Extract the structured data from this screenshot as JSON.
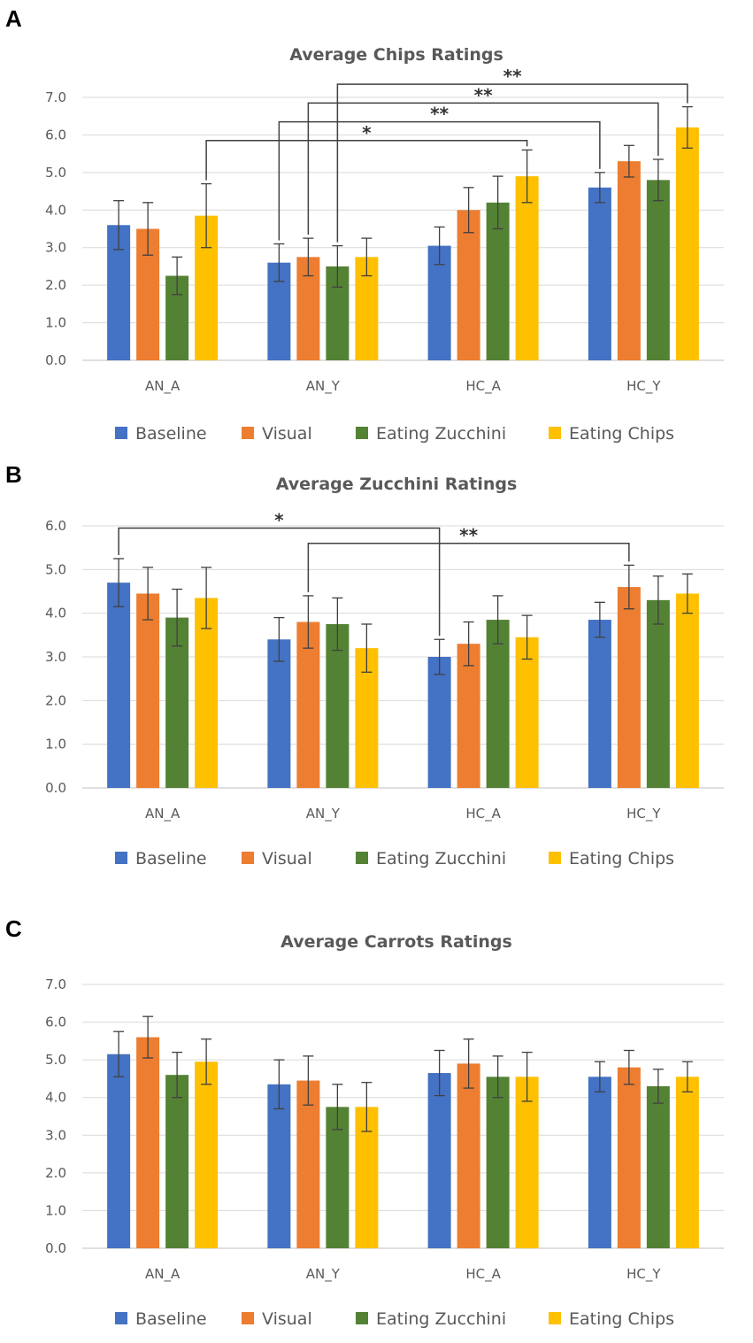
{
  "colors": {
    "Baseline": "#4472c4",
    "Visual": "#ed7d31",
    "Eating Zucchini": "#548235",
    "Eating Chips": "#ffc000"
  },
  "chart_data": [
    {
      "panel": "A",
      "type": "bar",
      "title": "Average Chips Ratings",
      "categories": [
        "AN_A",
        "AN_Y",
        "HC_A",
        "HC_Y"
      ],
      "ylim": [
        0,
        7
      ],
      "yticks": [
        "0.0",
        "1.0",
        "2.0",
        "3.0",
        "4.0",
        "5.0",
        "6.0",
        "7.0"
      ],
      "grid": true,
      "legend_position": "bottom",
      "series": [
        {
          "name": "Baseline",
          "values": [
            3.6,
            2.6,
            3.05,
            4.6
          ],
          "errors": [
            0.65,
            0.5,
            0.5,
            0.4
          ]
        },
        {
          "name": "Visual",
          "values": [
            3.5,
            2.75,
            4.0,
            5.3
          ],
          "errors": [
            0.7,
            0.5,
            0.6,
            0.42
          ]
        },
        {
          "name": "Eating Zucchini",
          "values": [
            2.25,
            2.5,
            4.2,
            4.8
          ],
          "errors": [
            0.5,
            0.55,
            0.7,
            0.55
          ]
        },
        {
          "name": "Eating Chips",
          "values": [
            3.85,
            2.75,
            4.9,
            6.2
          ],
          "errors": [
            0.85,
            0.5,
            0.7,
            0.55
          ]
        }
      ],
      "significance": [
        {
          "label": "*",
          "from": {
            "category": 0,
            "series": 3
          },
          "to": {
            "category": 2,
            "series": 3
          },
          "y": 5.85
        },
        {
          "label": "**",
          "from": {
            "category": 1,
            "series": 0
          },
          "to": {
            "category": 3,
            "series": 0
          },
          "y": 6.35
        },
        {
          "label": "**",
          "from": {
            "category": 1,
            "series": 1
          },
          "to": {
            "category": 3,
            "series": 2
          },
          "y": 6.85
        },
        {
          "label": "**",
          "from": {
            "category": 1,
            "series": 2
          },
          "to": {
            "category": 3,
            "series": 3
          },
          "y": 7.35
        }
      ]
    },
    {
      "panel": "B",
      "type": "bar",
      "title": "Average Zucchini Ratings",
      "categories": [
        "AN_A",
        "AN_Y",
        "HC_A",
        "HC_Y"
      ],
      "ylim": [
        0,
        6
      ],
      "yticks": [
        "0.0",
        "1.0",
        "2.0",
        "3.0",
        "4.0",
        "5.0",
        "6.0"
      ],
      "grid": true,
      "legend_position": "bottom",
      "series": [
        {
          "name": "Baseline",
          "values": [
            4.7,
            3.4,
            3.0,
            3.85
          ],
          "errors": [
            0.55,
            0.5,
            0.4,
            0.4
          ]
        },
        {
          "name": "Visual",
          "values": [
            4.45,
            3.8,
            3.3,
            4.6
          ],
          "errors": [
            0.6,
            0.6,
            0.5,
            0.5
          ]
        },
        {
          "name": "Eating Zucchini",
          "values": [
            3.9,
            3.75,
            3.85,
            4.3
          ],
          "errors": [
            0.65,
            0.6,
            0.55,
            0.55
          ]
        },
        {
          "name": "Eating Chips",
          "values": [
            4.35,
            3.2,
            3.45,
            4.45
          ],
          "errors": [
            0.7,
            0.55,
            0.5,
            0.45
          ]
        }
      ],
      "significance": [
        {
          "label": "*",
          "from": {
            "category": 0,
            "series": 0
          },
          "to": {
            "category": 2,
            "series": 0
          },
          "y": 5.95
        },
        {
          "label": "**",
          "from": {
            "category": 1,
            "series": 1
          },
          "to": {
            "category": 3,
            "series": 1
          },
          "y": 5.6
        }
      ]
    },
    {
      "panel": "C",
      "type": "bar",
      "title": "Average Carrots Ratings",
      "categories": [
        "AN_A",
        "AN_Y",
        "HC_A",
        "HC_Y"
      ],
      "ylim": [
        0,
        7
      ],
      "yticks": [
        "0.0",
        "1.0",
        "2.0",
        "3.0",
        "4.0",
        "5.0",
        "6.0",
        "7.0"
      ],
      "grid": true,
      "legend_position": "bottom",
      "series": [
        {
          "name": "Baseline",
          "values": [
            5.15,
            4.35,
            4.65,
            4.55
          ],
          "errors": [
            0.6,
            0.65,
            0.6,
            0.4
          ]
        },
        {
          "name": "Visual",
          "values": [
            5.6,
            4.45,
            4.9,
            4.8
          ],
          "errors": [
            0.55,
            0.65,
            0.65,
            0.45
          ]
        },
        {
          "name": "Eating Zucchini",
          "values": [
            4.6,
            3.75,
            4.55,
            4.3
          ],
          "errors": [
            0.6,
            0.6,
            0.55,
            0.45
          ]
        },
        {
          "name": "Eating Chips",
          "values": [
            4.95,
            3.75,
            4.55,
            4.55
          ],
          "errors": [
            0.6,
            0.65,
            0.65,
            0.4
          ]
        }
      ],
      "significance": []
    }
  ]
}
